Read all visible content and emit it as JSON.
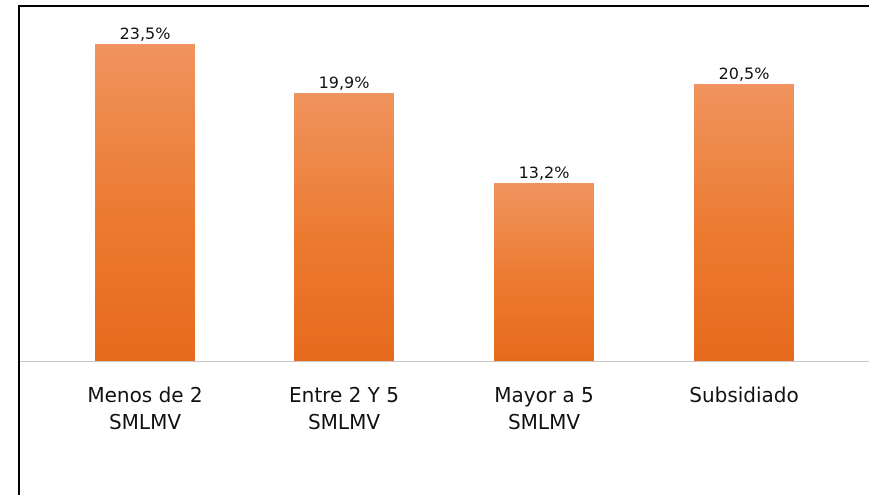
{
  "chart_data": {
    "type": "bar",
    "categories": [
      "Menos de 2 SMLMV",
      "Entre 2 Y 5 SMLMV",
      "Mayor a 5 SMLMV",
      "Subsidiado"
    ],
    "values": [
      23.5,
      19.9,
      13.2,
      20.5
    ],
    "value_labels": [
      "23,5%",
      "19,9%",
      "13,2%",
      "20,5%"
    ],
    "color": "#ec7a30"
  }
}
